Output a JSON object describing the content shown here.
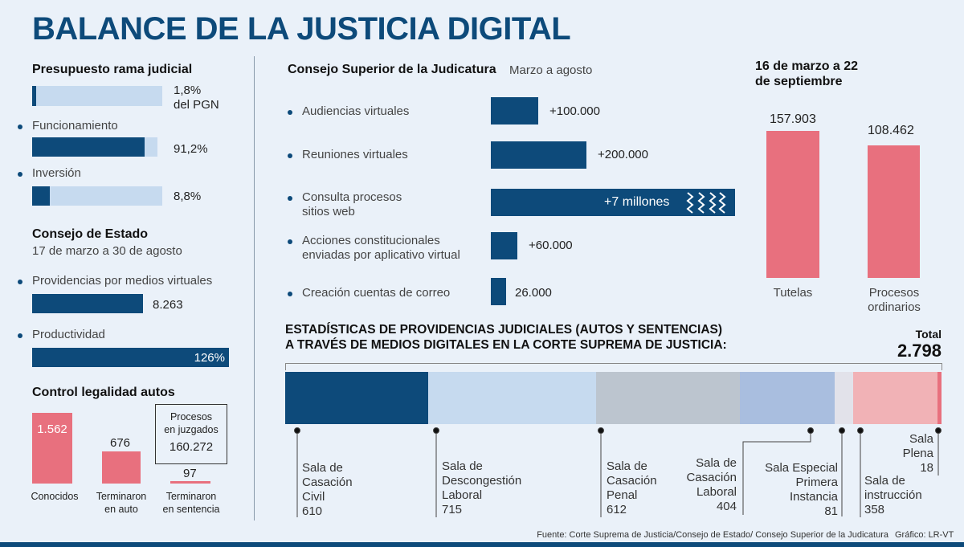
{
  "title": "BALANCE DE LA JUSTICIA DIGITAL",
  "presupuesto": {
    "heading": "Presupuesto rama judicial",
    "pgn_value": "1,8%",
    "pgn_label": "del PGN",
    "funcionamiento_label": "Funcionamiento",
    "funcionamiento_value": "91,2%",
    "inversion_label": "Inversión",
    "inversion_value": "8,8%"
  },
  "consejo_estado": {
    "heading": "Consejo de Estado",
    "period": "17 de marzo a 30 de agosto",
    "providencias_label": "Providencias por medios virtuales",
    "providencias_value": "8.263",
    "productividad_label": "Productividad",
    "productividad_value": "126%"
  },
  "control": {
    "heading": "Control legalidad autos",
    "conocidos_value": "1.562",
    "conocidos_label": "Conocidos",
    "auto_value": "676",
    "auto_label_1": "Terminaron",
    "auto_label_2": "en auto",
    "sentencia_value": "97",
    "sentencia_label_1": "Terminaron",
    "sentencia_label_2": "en sentencia",
    "procesos_label_1": "Procesos",
    "procesos_label_2": "en juzgados",
    "procesos_value": "160.272"
  },
  "csj": {
    "heading": "Consejo Superior de la Judicatura",
    "period": "Marzo a agosto",
    "items": [
      {
        "label": "Audiencias virtuales",
        "value": "+100.000"
      },
      {
        "label": "Reuniones virtuales",
        "value": "+200.000"
      },
      {
        "label": "Consulta procesos",
        "label2": "sitios web",
        "value": "+7 millones"
      },
      {
        "label": "Acciones constitucionales",
        "label2": "enviadas por aplicativo virtual",
        "value": "+60.000"
      },
      {
        "label": "Creación cuentas de correo",
        "value": "26.000"
      }
    ]
  },
  "tutelas": {
    "heading_1": "16 de marzo a 22",
    "heading_2": "de septiembre",
    "tutelas_value": "157.903",
    "tutelas_label": "Tutelas",
    "ordinarios_value": "108.462",
    "ordinarios_label_1": "Procesos",
    "ordinarios_label_2": "ordinarios"
  },
  "providencias": {
    "heading_1": "ESTADÍSTICAS DE PROVIDENCIAS JUDICIALES (AUTOS Y SENTENCIAS)",
    "heading_2": "A TRAVÉS DE MEDIOS DIGITALES EN LA CORTE SUPREMA DE JUSTICIA:",
    "total_label": "Total",
    "total_value": "2.798"
  },
  "chart_data": [
    {
      "type": "bar",
      "categories": [
        "Audiencias virtuales",
        "Reuniones virtuales",
        "Consulta procesos sitios web",
        "Acciones constitucionales enviadas por aplicativo virtual",
        "Creación cuentas de correo"
      ],
      "values": [
        100000,
        200000,
        7000000,
        60000,
        26000
      ]
    },
    {
      "type": "bar",
      "categories": [
        "Tutelas",
        "Procesos ordinarios"
      ],
      "values": [
        157903,
        108462
      ]
    },
    {
      "type": "bar",
      "categories": [
        "Sala de Casación Civil",
        "Sala de Descongestión Laboral",
        "Sala de Casación Penal",
        "Sala de Casación Laboral",
        "Sala Especial Primera Instancia",
        "Sala de instrucción",
        "Sala Plena"
      ],
      "values": [
        610,
        715,
        612,
        404,
        81,
        358,
        18
      ],
      "colors": [
        "#0d4a7a",
        "#c6daef",
        "#bcc5cf",
        "#a9bedf",
        "#e2e2ea",
        "#f1b2b6",
        "#e8707e"
      ]
    },
    {
      "type": "bar",
      "categories": [
        "Conocidos",
        "Terminaron en auto",
        "Terminaron en sentencia"
      ],
      "values": [
        1562,
        676,
        97
      ]
    },
    {
      "type": "bar",
      "categories": [
        "PGN",
        "Funcionamiento",
        "Inversión"
      ],
      "values": [
        1.8,
        91.2,
        8.8
      ]
    }
  ],
  "footer": {
    "source": "Fuente: Corte Suprema de Justicia/Consejo de Estado/ Consejo Superior de la Judicatura",
    "credit": "Gráfico: LR-VT"
  }
}
